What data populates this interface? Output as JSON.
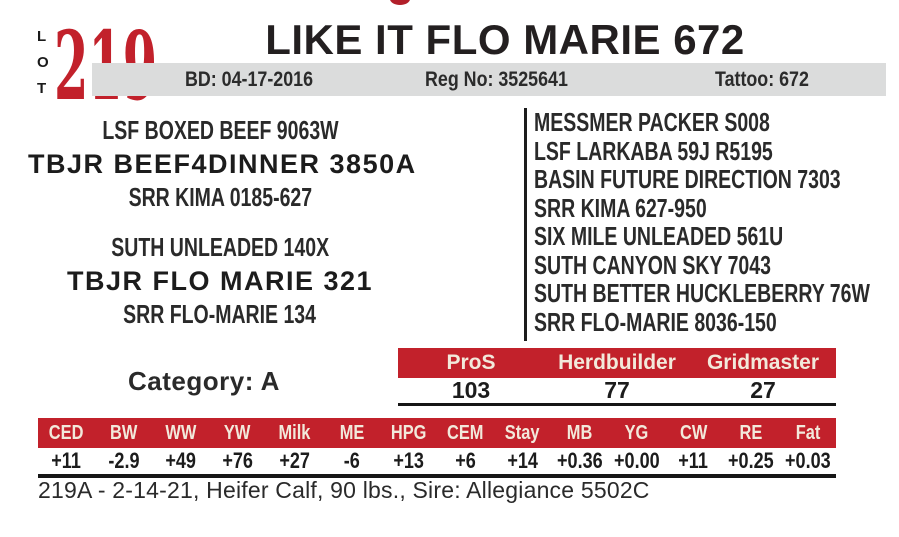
{
  "colors": {
    "accent_red": "#C2212B",
    "bar_gray": "#DBDCDC",
    "header_text_cream": "#F2E9DB",
    "ink": "#231F20"
  },
  "top": {
    "lot_label": "LOT",
    "lot_number": "219",
    "title": "LIKE IT FLO MARIE 672",
    "info_bar": {
      "bd": "BD: 04-17-2016",
      "reg_no": "Reg No: 3525641",
      "tattoo": "Tattoo: 672"
    }
  },
  "pedigree": {
    "sire": {
      "top": "LSF BOXED BEEF 9063W",
      "name": "TBJR BEEF4DINNER 3850A",
      "bottom": "SRR KIMA 0185-627"
    },
    "dam": {
      "top": "SUTH UNLEADED 140X",
      "name": "TBJR FLO MARIE 321",
      "bottom": "SRR FLO-MARIE 134"
    },
    "ancestors": [
      "MESSMER PACKER S008",
      "LSF LARKABA 59J R5195",
      "BASIN FUTURE DIRECTION 7303",
      "SRR KIMA 627-950",
      "SIX MILE UNLEADED 561U",
      "SUTH CANYON SKY 7043",
      "SUTH BETTER HUCKLEBERRY 76W",
      "SRR FLO-MARIE 8036-150"
    ]
  },
  "category": "Category: A",
  "indexes": {
    "headers": [
      "ProS",
      "Herdbuilder",
      "Gridmaster"
    ],
    "values": [
      "103",
      "77",
      "27"
    ]
  },
  "epd": {
    "headers": [
      "CED",
      "BW",
      "WW",
      "YW",
      "Milk",
      "ME",
      "HPG",
      "CEM",
      "Stay",
      "MB",
      "YG",
      "CW",
      "RE",
      "Fat"
    ],
    "values": [
      "+11",
      "-2.9",
      "+49",
      "+76",
      "+27",
      "-6",
      "+13",
      "+6",
      "+14",
      "+0.36",
      "+0.00",
      "+11",
      "+0.25",
      "+0.03"
    ]
  },
  "footnote": "219A - 2-14-21, Heifer Calf, 90 lbs., Sire: Allegiance 5502C"
}
